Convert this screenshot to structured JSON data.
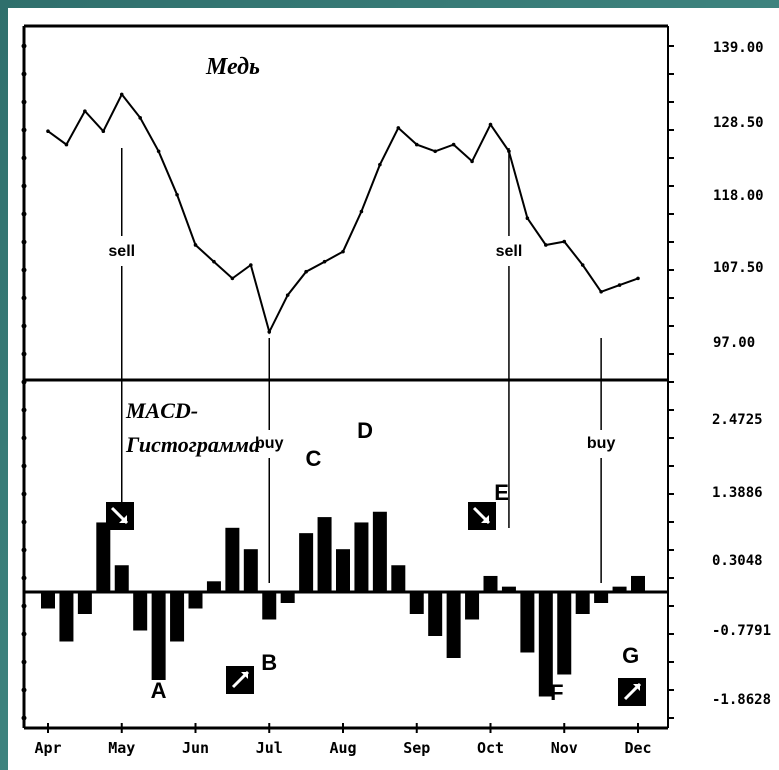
{
  "chart_data": [
    {
      "panel": "price",
      "type": "line",
      "title": "Медь",
      "x_ticks": [
        "Apr",
        "May",
        "Jun",
        "Jul",
        "Aug",
        "Sep",
        "Oct",
        "Nov",
        "Dec"
      ],
      "y_ticks": [
        "139.00",
        "128.50",
        "118.00",
        "107.50",
        "97.00"
      ],
      "ylim": [
        97.0,
        139.0
      ],
      "series": [
        {
          "x": [
            0.0,
            0.25,
            0.5,
            0.75,
            1.0,
            1.25,
            1.5,
            1.75,
            2.0,
            2.25,
            2.5,
            2.75,
            3.0,
            3.25,
            3.5,
            3.75,
            4.0,
            4.25,
            4.5,
            4.75,
            5.0,
            5.25,
            5.5,
            5.75,
            6.0,
            6.25,
            6.5,
            6.75,
            7.0,
            7.25,
            7.5,
            7.75,
            8.0
          ],
          "values": [
            130.0,
            128.0,
            133.0,
            130.0,
            135.5,
            132.0,
            127.0,
            120.5,
            113.0,
            110.5,
            108.0,
            110.0,
            100.0,
            105.5,
            109.0,
            110.5,
            112.0,
            118.0,
            125.0,
            130.5,
            128.0,
            127.0,
            128.0,
            125.5,
            131.0,
            127.0,
            117.0,
            113.0,
            113.5,
            110.0,
            106.0,
            107.0,
            108.0
          ]
        }
      ],
      "annotations": [
        {
          "text": "sell",
          "x": 1.0
        },
        {
          "text": "buy",
          "x": 3.0
        },
        {
          "text": "sell",
          "x": 6.25
        },
        {
          "text": "buy",
          "x": 7.5
        }
      ]
    },
    {
      "panel": "macd",
      "type": "bar",
      "title": "MACD-\nГистограмма",
      "y_ticks": [
        "2.4725",
        "1.3886",
        "0.3048",
        "-0.7791",
        "-1.8628"
      ],
      "ylim": [
        -1.8628,
        2.4725
      ],
      "x_ticks": [
        "Apr",
        "May",
        "Jun",
        "Jul",
        "Aug",
        "Sep",
        "Oct",
        "Nov",
        "Dec"
      ],
      "series": [
        {
          "x": [
            0.0,
            0.25,
            0.5,
            0.75,
            1.0,
            1.25,
            1.5,
            1.75,
            2.0,
            2.25,
            2.5,
            2.75,
            3.0,
            3.25,
            3.5,
            3.75,
            4.0,
            4.25,
            4.5,
            4.75,
            5.0,
            5.25,
            5.5,
            5.75,
            6.0,
            6.25,
            6.5,
            6.75,
            7.0,
            7.25,
            7.5,
            7.75,
            8.0
          ],
          "values": [
            -0.3,
            -0.9,
            -0.4,
            1.3,
            0.5,
            -0.7,
            -1.6,
            -0.9,
            -0.3,
            0.2,
            1.2,
            0.8,
            -0.5,
            -0.2,
            1.1,
            1.4,
            0.8,
            1.3,
            1.5,
            0.5,
            -0.4,
            -0.8,
            -1.2,
            -0.5,
            0.3,
            0.1,
            -1.1,
            -1.9,
            -1.5,
            -0.4,
            -0.2,
            0.1,
            0.3
          ]
        }
      ],
      "annotations": [
        {
          "text": "A",
          "x": 1.5
        },
        {
          "text": "B",
          "x": 3.0
        },
        {
          "text": "C",
          "x": 3.6
        },
        {
          "text": "D",
          "x": 4.3
        },
        {
          "text": "E",
          "x": 6.15
        },
        {
          "text": "F",
          "x": 6.9
        },
        {
          "text": "G",
          "x": 7.9
        },
        {
          "text": "buy",
          "x": 3.0
        },
        {
          "text": "buy",
          "x": 7.55
        }
      ]
    }
  ]
}
